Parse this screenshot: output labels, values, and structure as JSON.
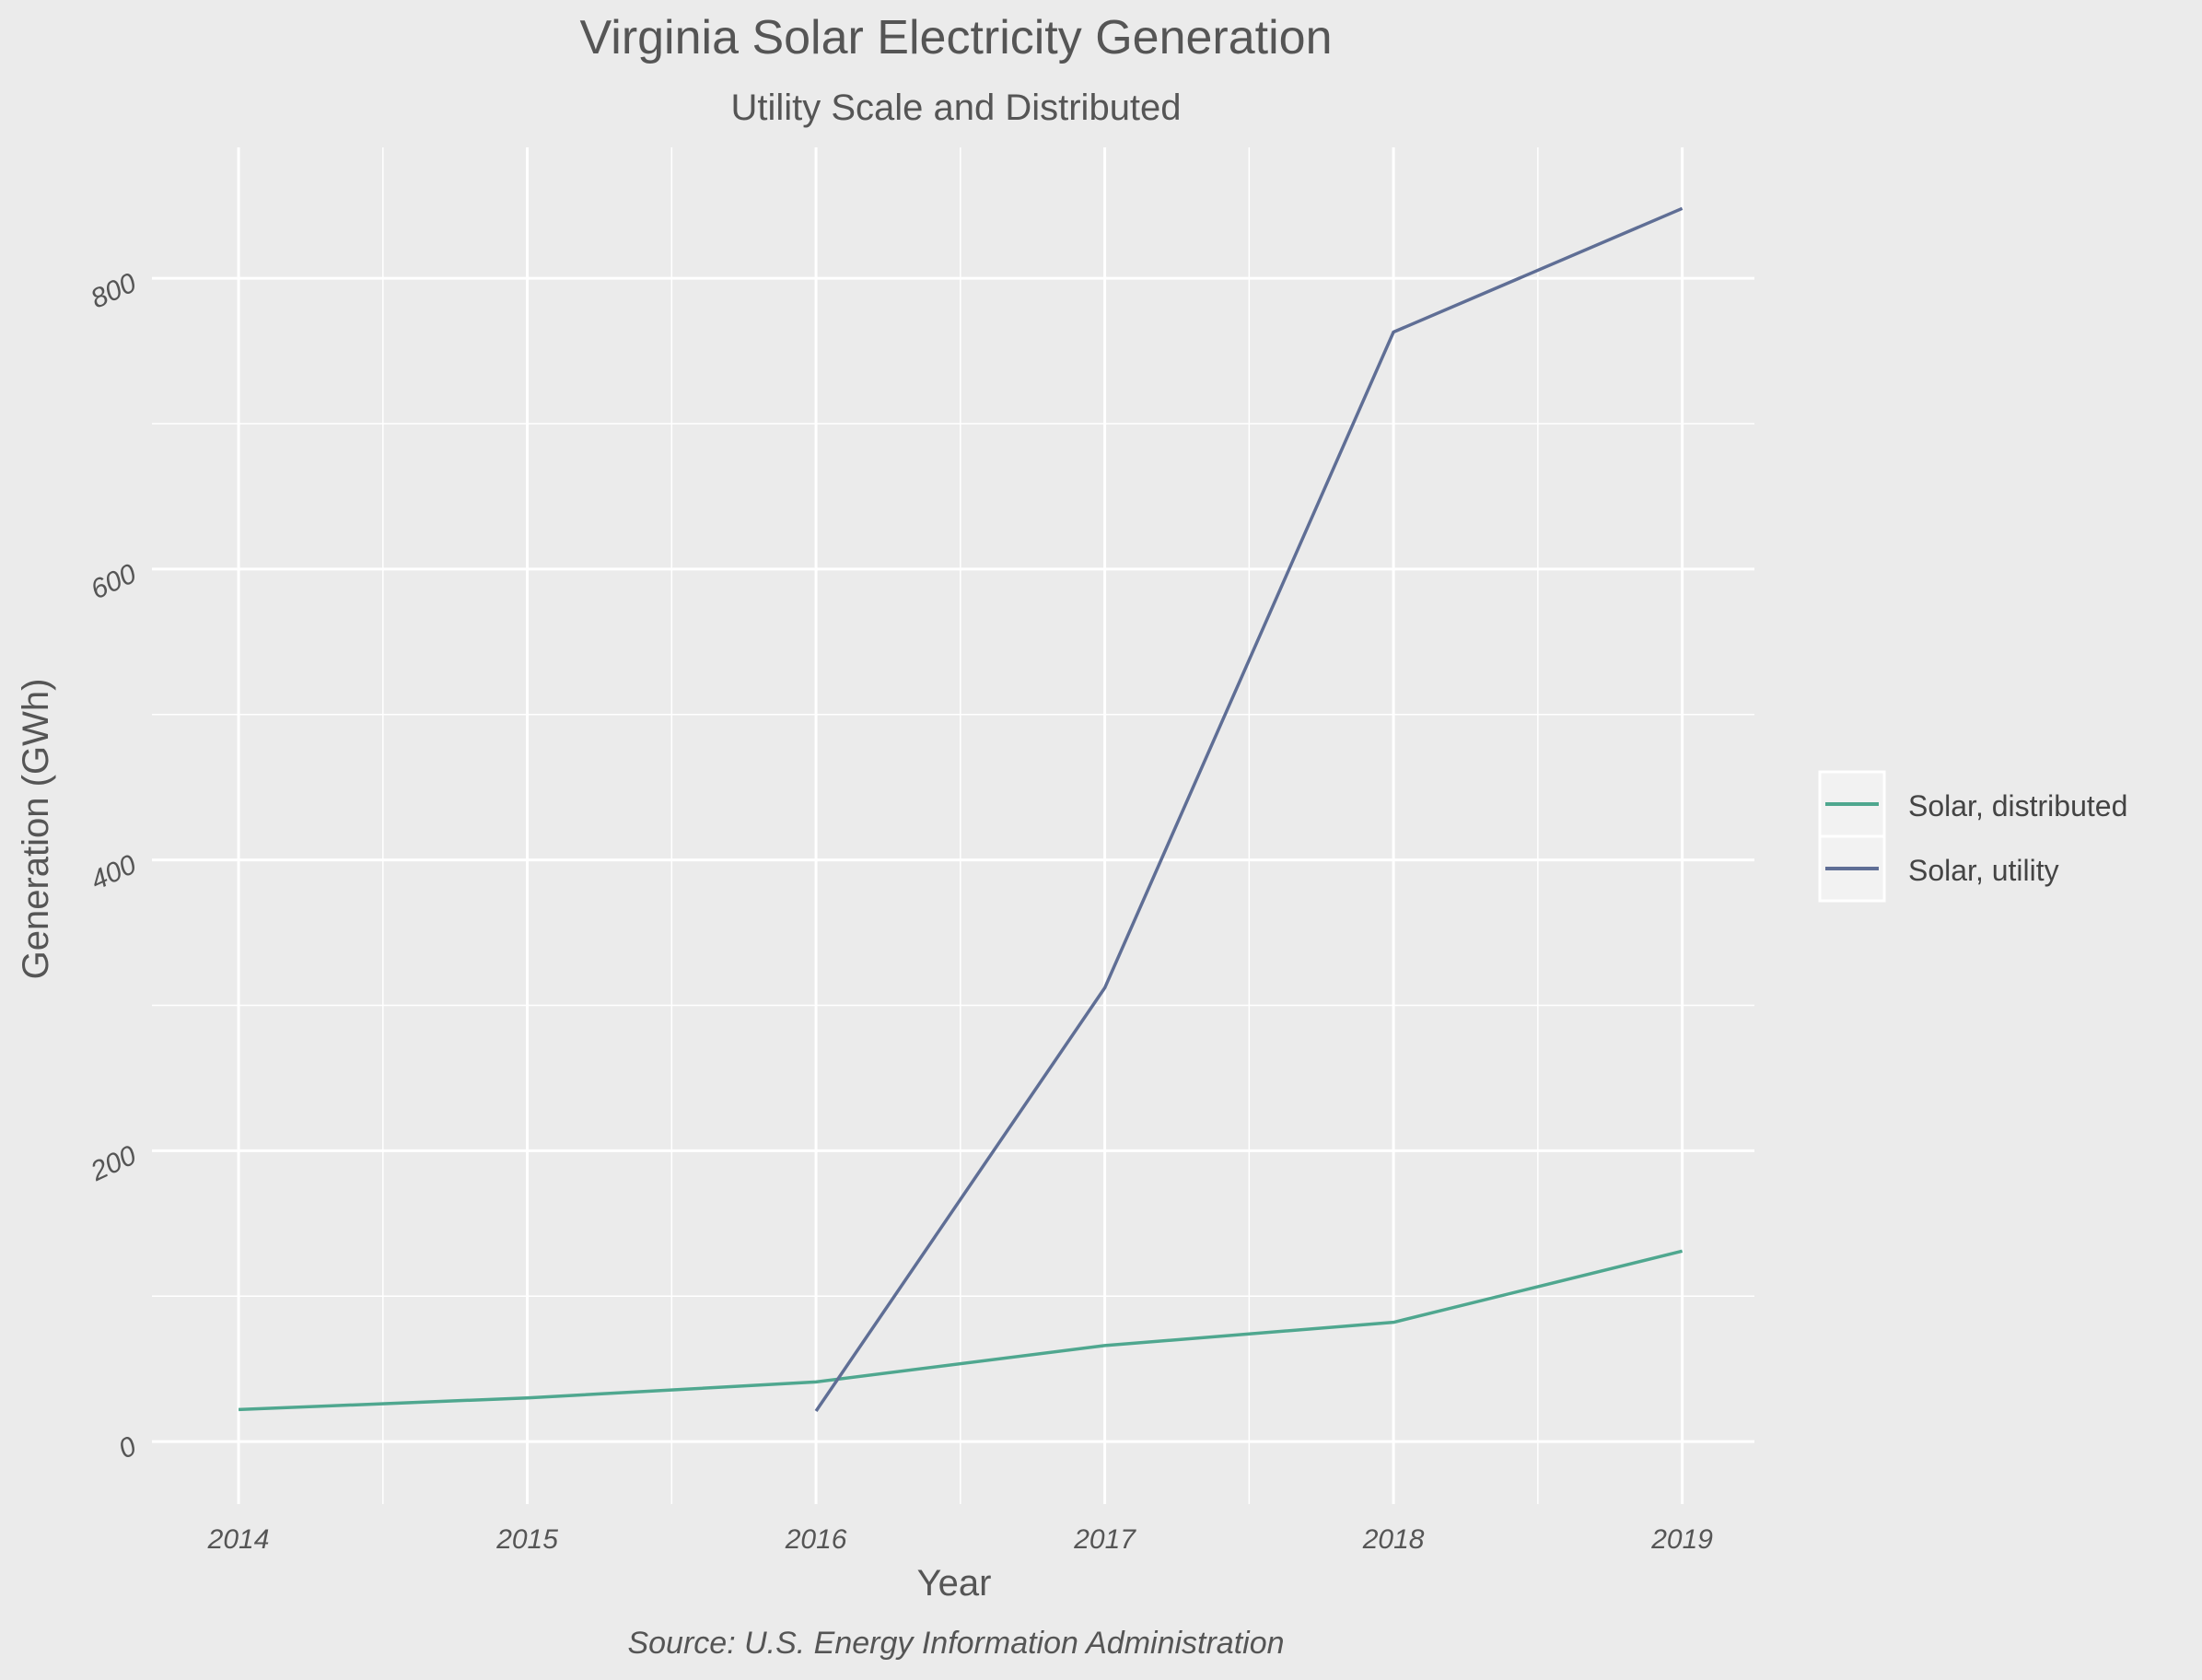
{
  "chart_data": {
    "type": "line",
    "title": "Virginia Solar Electricity Generation",
    "subtitle": "Utility Scale and Distributed",
    "xlabel": "Year",
    "ylabel": "Generation (GWh)",
    "caption": "Source: U.S. Energy Information Administration",
    "x": [
      2014,
      2015,
      2016,
      2017,
      2018,
      2019
    ],
    "x_ticks": [
      "2014",
      "2015",
      "2016",
      "2017",
      "2018",
      "2019"
    ],
    "y_ticks": [
      "0",
      "200",
      "400",
      "600",
      "800"
    ],
    "xlim": [
      2013.7,
      2019.25
    ],
    "ylim": [
      -43,
      890
    ],
    "grid": true,
    "legend_position": "right",
    "series": [
      {
        "name": "Solar, distributed",
        "color": "#4fa78f",
        "points": [
          [
            2014,
            22
          ],
          [
            2015,
            30
          ],
          [
            2016,
            41
          ],
          [
            2017,
            66
          ],
          [
            2018,
            82
          ],
          [
            2019,
            131
          ]
        ]
      },
      {
        "name": "Solar, utility",
        "color": "#5f6e95",
        "points": [
          [
            2016,
            21
          ],
          [
            2017,
            312
          ],
          [
            2018,
            763
          ],
          [
            2019,
            848
          ]
        ]
      }
    ]
  }
}
